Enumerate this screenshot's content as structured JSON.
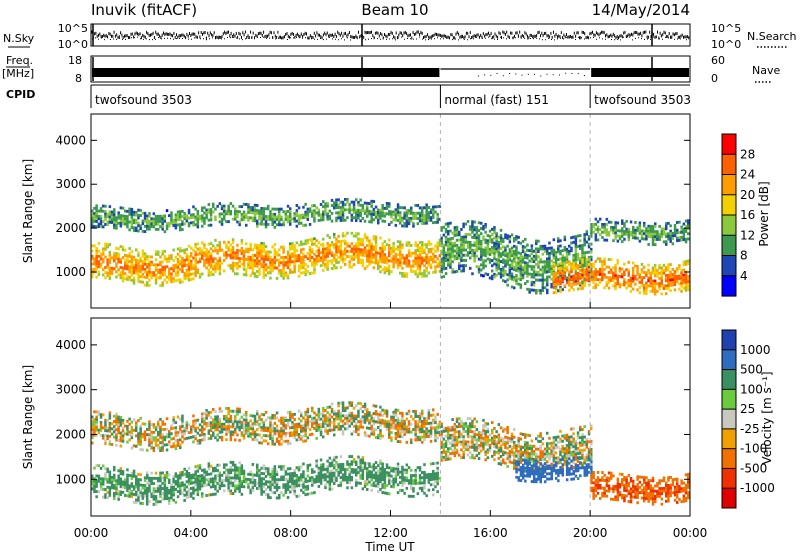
{
  "header": {
    "station": "Inuvik (fitACF)",
    "beam": "Beam 10",
    "date": "14/May/2014"
  },
  "panels": {
    "sky": {
      "left_label": "N.Sky",
      "right_label": "N.Search",
      "ticks": [
        "10^5",
        "10^0"
      ],
      "right_ticks": [
        "10^5",
        "10^0"
      ]
    },
    "freq": {
      "left_label_top": "Freq.",
      "left_label_bottom": "[MHz]",
      "right_label": "Nave",
      "ticks": [
        "18",
        "8"
      ],
      "right_ticks": [
        "60",
        "0"
      ]
    },
    "cpid": {
      "label": "CPID",
      "segments": [
        {
          "label": "twofsound 3503",
          "start_hour": 0,
          "end_hour": 14.0
        },
        {
          "label": "normal (fast) 151",
          "start_hour": 14.0,
          "end_hour": 20.0
        },
        {
          "label": "twofsound 3503",
          "start_hour": 20.0,
          "end_hour": 24
        }
      ]
    }
  },
  "colorbars": {
    "power": {
      "title": "Power [dB]",
      "ticks": [
        "28",
        "24",
        "20",
        "16",
        "12",
        "8",
        "4"
      ],
      "colors": [
        "#ff0000",
        "#ff6000",
        "#ff9c00",
        "#f5d000",
        "#8cc83c",
        "#3c9a50",
        "#1e46b4",
        "#0000ff"
      ]
    },
    "velocity": {
      "title": "Velocity [m s⁻¹]",
      "ticks": [
        "1000",
        "500",
        "100",
        "25",
        "-25",
        "-100",
        "-500",
        "-1000"
      ],
      "colors": [
        "#2040b0",
        "#2e6cc0",
        "#3a9060",
        "#6acb3c",
        "#c8c8c0",
        "#f0a000",
        "#f07000",
        "#f03000",
        "#e00000"
      ]
    }
  },
  "axes": {
    "y_label": "Slant Range [km]",
    "y_ticks": [
      "4000",
      "3000",
      "2000",
      "1000"
    ],
    "x_label": "Time UT",
    "x_ticks": [
      "00:00",
      "04:00",
      "08:00",
      "12:00",
      "16:00",
      "20:00",
      "00:00"
    ]
  },
  "chart_data": [
    {
      "type": "heatmap",
      "title": "Power [dB]",
      "xlabel": "Time UT",
      "ylabel": "Slant Range [km]",
      "x_range_hours": [
        0,
        24
      ],
      "y_range_km": [
        180,
        4600
      ],
      "color_range_db": [
        0,
        32
      ],
      "bands": [
        {
          "start_hour": 0.0,
          "end_hour": 14.0,
          "center_km": 1300,
          "width_km": 800,
          "value_db": 24
        },
        {
          "start_hour": 0.0,
          "end_hour": 14.0,
          "center_km": 2300,
          "width_km": 500,
          "value_db": 12
        },
        {
          "start_hour": 14.0,
          "end_hour": 20.0,
          "center_km": 1400,
          "width_km": 1200,
          "value_db": 12
        },
        {
          "start_hour": 18.5,
          "end_hour": 24.0,
          "center_km": 1000,
          "width_km": 700,
          "value_db": 26
        },
        {
          "start_hour": 20.0,
          "end_hour": 24.0,
          "center_km": 2000,
          "width_km": 500,
          "value_db": 12
        }
      ]
    },
    {
      "type": "heatmap",
      "title": "Velocity [m s⁻¹]",
      "xlabel": "Time UT",
      "ylabel": "Slant Range [km]",
      "x_range_hours": [
        0,
        24
      ],
      "y_range_km": [
        180,
        4600
      ],
      "color_range_ms": [
        -1000,
        1000
      ],
      "bands": [
        {
          "start_hour": 0.0,
          "end_hour": 14.0,
          "center_km": 2200,
          "width_km": 700,
          "value_ms": 0
        },
        {
          "start_hour": 0.0,
          "end_hour": 14.0,
          "center_km": 1000,
          "width_km": 700,
          "value_ms": 150
        },
        {
          "start_hour": 14.0,
          "end_hour": 20.0,
          "center_km": 1800,
          "width_km": 900,
          "value_ms": 0
        },
        {
          "start_hour": 17.0,
          "end_hour": 20.0,
          "center_km": 1300,
          "width_km": 500,
          "value_ms": 600
        },
        {
          "start_hour": 20.0,
          "end_hour": 24.0,
          "center_km": 900,
          "width_km": 600,
          "value_ms": -300
        }
      ]
    }
  ]
}
